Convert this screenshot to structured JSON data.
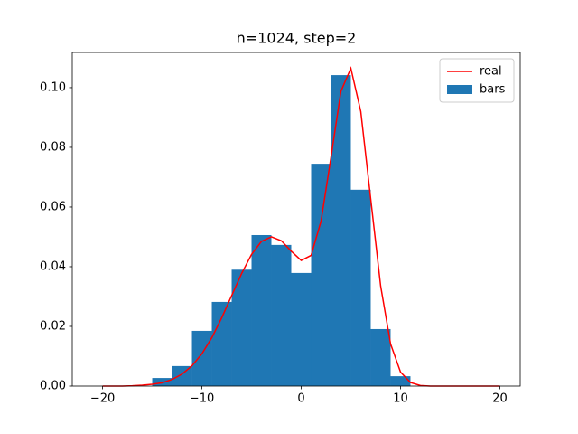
{
  "chart_data": {
    "type": "histogram",
    "title": "n=1024, step=2",
    "xlim": [
      -23.05,
      22.05
    ],
    "ylim": [
      0,
      0.1118
    ],
    "xticks": [
      {
        "value": -20,
        "label": "−20"
      },
      {
        "value": -10,
        "label": "−10"
      },
      0,
      10,
      20
    ],
    "yticks": [
      {
        "value": 0,
        "label": "0.00"
      },
      {
        "value": 0.02,
        "label": "0.02"
      },
      {
        "value": 0.04,
        "label": "0.04"
      },
      {
        "value": 0.06,
        "label": "0.06"
      },
      {
        "value": 0.08,
        "label": "0.08"
      },
      {
        "value": 0.1,
        "label": "0.10"
      }
    ],
    "legend": "upper right",
    "series": [
      {
        "name": "real",
        "type": "line",
        "color": "#ff0000",
        "x": [
          -20,
          -19,
          -18,
          -17,
          -16,
          -15,
          -14,
          -13,
          -12,
          -11,
          -10,
          -9,
          -8,
          -7,
          -6,
          -5,
          -4,
          -3,
          -2,
          -1,
          0,
          1,
          2,
          3,
          4,
          5,
          6,
          7,
          8,
          9,
          10,
          11,
          12,
          13,
          14,
          15,
          16,
          17,
          18,
          19,
          20
        ],
        "values": [
          0,
          0,
          0,
          0.0001,
          0.0003,
          0.0006,
          0.0011,
          0.0022,
          0.004,
          0.0068,
          0.0108,
          0.0162,
          0.0229,
          0.0303,
          0.0377,
          0.0441,
          0.0485,
          0.05,
          0.0487,
          0.0452,
          0.0421,
          0.0438,
          0.0553,
          0.0767,
          0.0988,
          0.1065,
          0.092,
          0.0627,
          0.0335,
          0.0141,
          0.0047,
          0.0012,
          0.0002,
          0,
          0,
          0,
          0,
          0,
          0,
          0,
          0
        ]
      },
      {
        "name": "bars",
        "type": "histogram",
        "color": "#1f77b4",
        "bins": [
          -15,
          -13,
          -11,
          -9,
          -7,
          -5,
          -3,
          -1,
          1,
          3,
          5,
          7,
          9,
          11
        ],
        "values": [
          0.0027,
          0.0067,
          0.0185,
          0.0282,
          0.039,
          0.0506,
          0.0473,
          0.0379,
          0.0745,
          0.1042,
          0.0658,
          0.0191,
          0.0033
        ]
      }
    ]
  }
}
